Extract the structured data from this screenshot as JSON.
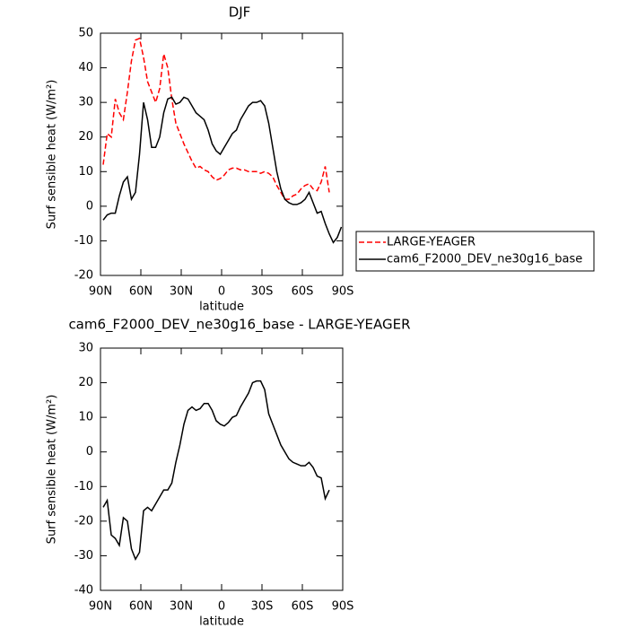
{
  "chart_data": [
    {
      "type": "line",
      "title": "DJF",
      "xlabel": "latitude",
      "ylabel": "Surf sensible heat (W/m²)",
      "x": [
        88,
        85,
        82,
        79,
        76,
        73,
        70,
        67,
        64,
        61,
        58,
        55,
        52,
        49,
        46,
        43,
        40,
        37,
        34,
        31,
        28,
        25,
        22,
        19,
        16,
        13,
        10,
        7,
        4,
        1,
        -2,
        -5,
        -8,
        -11,
        -14,
        -17,
        -20,
        -23,
        -26,
        -29,
        -32,
        -35,
        -38,
        -41,
        -44,
        -47,
        -50,
        -53,
        -56,
        -59,
        -62,
        -65,
        -68,
        -71,
        -74,
        -77,
        -80,
        -83,
        -86,
        -89
      ],
      "xlim": [
        90,
        -90
      ],
      "xticks": [
        {
          "value": 90,
          "label": "90N"
        },
        {
          "value": 60,
          "label": "60N"
        },
        {
          "value": 30,
          "label": "30N"
        },
        0,
        {
          "value": -30,
          "label": "30S"
        },
        {
          "value": -60,
          "label": "60S"
        },
        {
          "value": -90,
          "label": "90S"
        }
      ],
      "ylim": [
        -20,
        50
      ],
      "yticks": [
        -20,
        -10,
        0,
        10,
        20,
        30,
        40,
        50
      ],
      "legend": "right",
      "series": [
        {
          "name": "LARGE-YEAGER",
          "color": "#ff0000",
          "line_style": "dashed",
          "values": [
            12,
            21,
            20,
            31,
            27,
            25,
            33,
            42,
            48,
            48.5,
            43,
            36,
            33,
            30,
            34,
            44,
            40,
            31,
            24,
            21,
            18,
            15.5,
            13,
            11,
            11.5,
            10.5,
            10,
            8.5,
            7.5,
            8,
            9,
            10.5,
            11,
            11,
            10.5,
            10.5,
            10,
            10,
            10,
            9.5,
            10,
            9.5,
            8.5,
            6,
            4,
            2,
            2,
            3,
            3.5,
            5,
            6,
            6.5,
            5,
            4.5,
            7,
            11.5,
            4,
            null,
            null,
            null
          ]
        },
        {
          "name": "cam6_F2000_DEV_ne30g16_base",
          "color": "#000000",
          "line_style": "solid",
          "values": [
            -4,
            -2.5,
            -2,
            -2,
            3,
            7,
            8.5,
            2,
            4,
            15,
            30,
            25,
            17,
            17,
            20,
            27,
            31,
            31.5,
            29.5,
            30,
            31.5,
            31,
            29,
            27,
            26,
            25,
            22,
            18,
            16,
            15,
            17,
            19,
            21,
            22,
            25,
            27,
            29,
            30,
            30,
            30.5,
            29,
            24,
            17,
            10,
            5,
            2,
            1,
            0.5,
            0.5,
            1,
            2,
            4,
            1,
            -2,
            -1.5,
            -5,
            -8,
            -10.5,
            -9,
            -6
          ]
        }
      ]
    },
    {
      "type": "line",
      "title": "cam6_F2000_DEV_ne30g16_base - LARGE-YEAGER",
      "xlabel": "latitude",
      "ylabel": "Surf sensible heat (W/m²)",
      "x": [
        88,
        85,
        82,
        79,
        76,
        73,
        70,
        67,
        64,
        61,
        58,
        55,
        52,
        49,
        46,
        43,
        40,
        37,
        34,
        31,
        28,
        25,
        22,
        19,
        16,
        13,
        10,
        7,
        4,
        1,
        -2,
        -5,
        -8,
        -11,
        -14,
        -17,
        -20,
        -23,
        -26,
        -29,
        -32,
        -35,
        -38,
        -41,
        -44,
        -47,
        -50,
        -53,
        -56,
        -59,
        -62,
        -65,
        -68,
        -71,
        -74,
        -77,
        -80,
        -83,
        -86,
        -89
      ],
      "xlim": [
        90,
        -90
      ],
      "xticks": [
        {
          "value": 90,
          "label": "90N"
        },
        {
          "value": 60,
          "label": "60N"
        },
        {
          "value": 30,
          "label": "30N"
        },
        0,
        {
          "value": -30,
          "label": "30S"
        },
        {
          "value": -60,
          "label": "60S"
        },
        {
          "value": -90,
          "label": "90S"
        }
      ],
      "ylim": [
        -40,
        30
      ],
      "yticks": [
        -40,
        -30,
        -20,
        -10,
        0,
        10,
        20,
        30
      ],
      "color": "#000000",
      "values": [
        -16,
        -14,
        -24,
        -25,
        -27,
        -19,
        -20,
        -28,
        -31,
        -29,
        -17,
        -16,
        -17,
        -15,
        -13,
        -11,
        -11,
        -9,
        -3,
        2,
        8,
        12,
        13,
        12,
        12.5,
        14,
        14,
        12,
        9,
        8,
        7.5,
        8.5,
        10,
        10.5,
        13,
        15,
        17,
        20,
        20.5,
        20.5,
        18,
        11,
        8,
        5,
        2,
        0,
        -2,
        -3,
        -3.5,
        -4,
        -4,
        -3,
        -4.5,
        -7,
        -7.5,
        -13.5,
        -11,
        null,
        null,
        null
      ]
    }
  ]
}
